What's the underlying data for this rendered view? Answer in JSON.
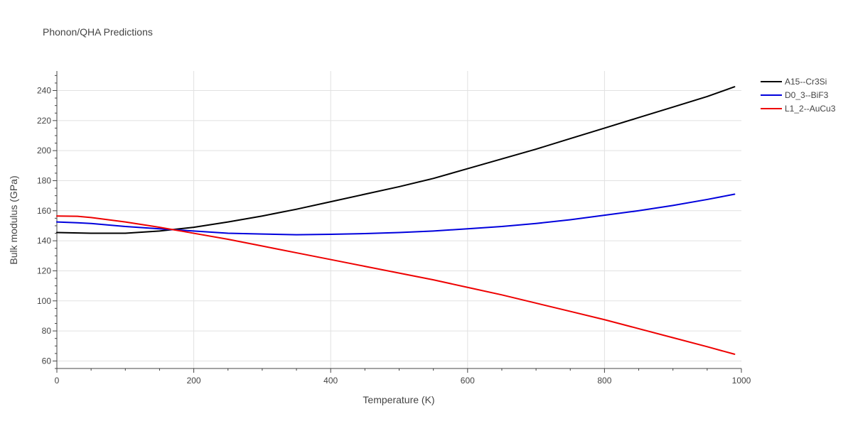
{
  "chart_data": {
    "type": "line",
    "title": "Phonon/QHA Predictions",
    "xlabel": "Temperature (K)",
    "ylabel": "Bulk modulus (GPa)",
    "xlim": [
      0,
      1000
    ],
    "ylim": [
      55,
      253
    ],
    "x_ticks": [
      0,
      200,
      400,
      600,
      800,
      1000
    ],
    "y_ticks": [
      60,
      80,
      100,
      120,
      140,
      160,
      180,
      200,
      220,
      240
    ],
    "x_tick_labels": [
      "0",
      "200",
      "400",
      "600",
      "800",
      "1000"
    ],
    "y_tick_labels": [
      "60",
      "80",
      "100",
      "120",
      "140",
      "160",
      "180",
      "200",
      "220",
      "240"
    ],
    "x_minor_step": 50,
    "y_minor_step": 5,
    "grid": true,
    "legend_position": "top-right",
    "series": [
      {
        "name": "A15--Cr3Si",
        "color": "#000000",
        "x": [
          0,
          50,
          100,
          150,
          200,
          250,
          300,
          350,
          400,
          450,
          500,
          550,
          600,
          650,
          700,
          750,
          800,
          850,
          900,
          950,
          990
        ],
        "y": [
          145.5,
          145.0,
          145.0,
          146.5,
          149.0,
          152.5,
          156.5,
          161.0,
          166.0,
          171.0,
          176.0,
          181.5,
          188.0,
          194.5,
          201.0,
          208.0,
          215.0,
          222.0,
          229.0,
          236.0,
          242.5
        ]
      },
      {
        "name": "D0_3--BiF3",
        "color": "#0000dd",
        "x": [
          0,
          30,
          50,
          100,
          150,
          200,
          250,
          300,
          350,
          400,
          450,
          500,
          550,
          600,
          650,
          700,
          750,
          800,
          850,
          900,
          950,
          990
        ],
        "y": [
          152.5,
          152.0,
          151.5,
          149.5,
          148.0,
          146.5,
          145.0,
          144.5,
          144.0,
          144.3,
          144.8,
          145.5,
          146.5,
          148.0,
          149.5,
          151.5,
          154.0,
          157.0,
          160.0,
          163.5,
          167.5,
          171.0
        ]
      },
      {
        "name": "L1_2--AuCu3",
        "color": "#ee0000",
        "x": [
          0,
          30,
          50,
          100,
          150,
          200,
          250,
          300,
          350,
          400,
          450,
          500,
          550,
          600,
          650,
          700,
          750,
          800,
          850,
          900,
          950,
          990
        ],
        "y": [
          156.5,
          156.3,
          155.5,
          152.5,
          149.0,
          145.0,
          141.0,
          136.5,
          132.0,
          127.5,
          123.0,
          118.5,
          114.0,
          109.0,
          104.0,
          98.5,
          93.0,
          87.5,
          81.5,
          75.5,
          69.5,
          64.5
        ]
      }
    ]
  }
}
